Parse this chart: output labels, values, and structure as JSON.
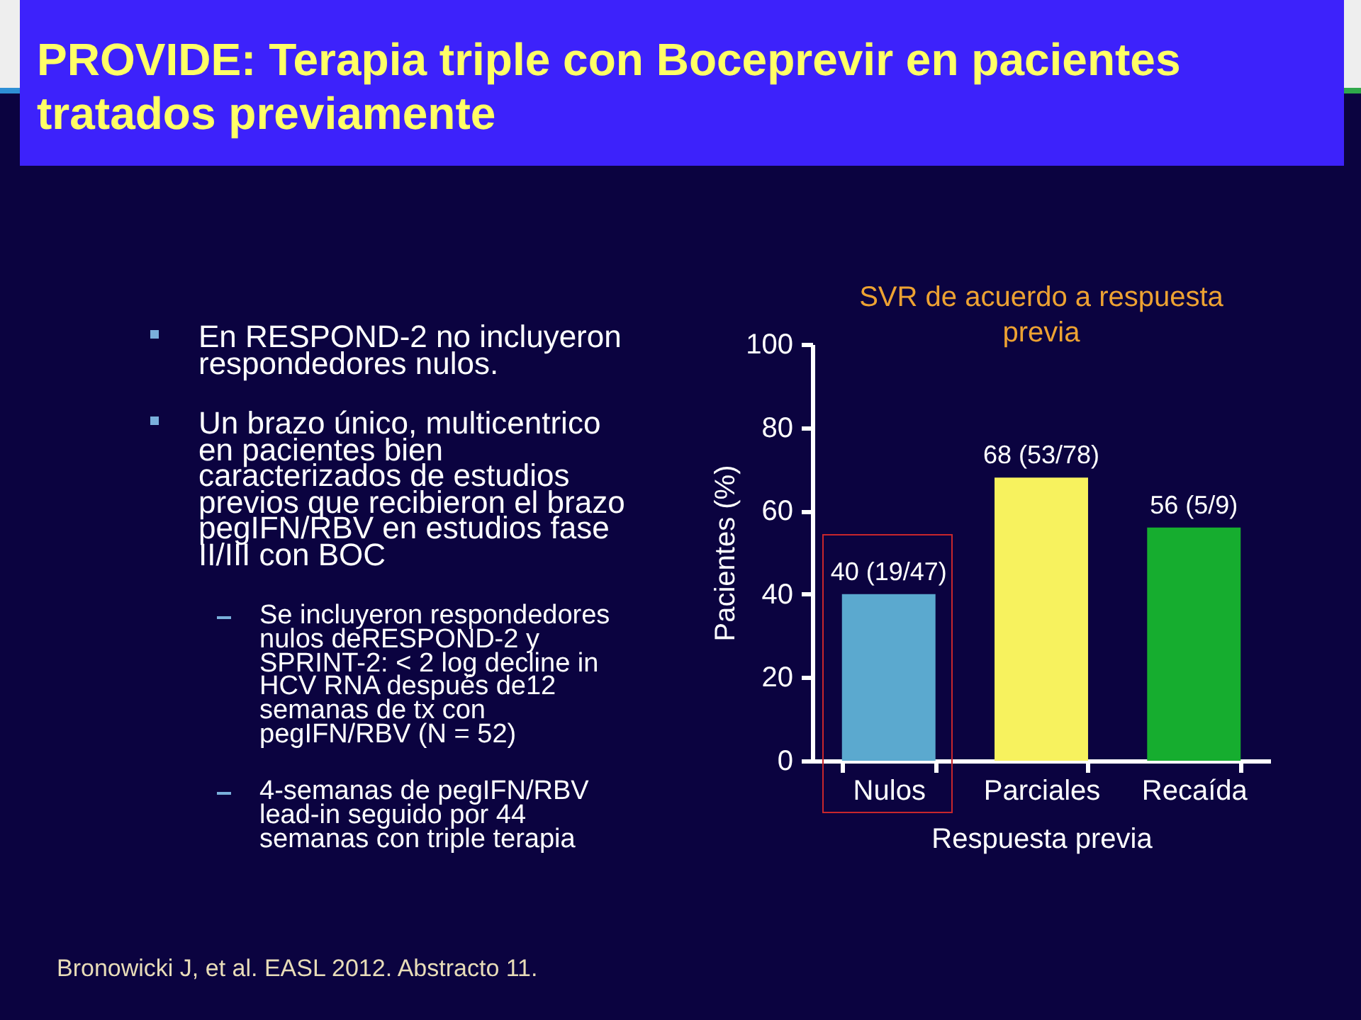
{
  "chart_data": {
    "type": "bar",
    "title": "PROVIDE: Terapia triple con Boceprevir en pacientes tratados previamente",
    "subtitle": "SVR de acuerdo a respuesta previa",
    "xlabel": "Respuesta previa",
    "ylabel": "Pacientes (%)",
    "categories": [
      "Nulos",
      "Parciales",
      "Recaída"
    ],
    "values": [
      40,
      68,
      56
    ],
    "colors": [
      "#5ba9cf",
      "#f7f25e",
      "#16ad2f"
    ],
    "value_labels": [
      "40 (19/47)",
      "68 (53/78)",
      "56 (5/9)"
    ],
    "ylim": [
      0,
      100
    ],
    "yticks": [
      0,
      20,
      40,
      60,
      80,
      100
    ],
    "annotations": [
      "En RESPOND-2 no incluyeron respondedores nulos.",
      "Un brazo único, multicentrico en pacientes bien caracterizados de estudios previos que recibieron el brazo pegIFN/RBV en estudios fase II/III con BOC",
      "Se incluyeron respondedores nulos deRESPOND-2 y SPRINT-2: < 2 log decline in HCV RNA después de12 semanas de tx con pegIFN/RBV (N = 52)",
      "4-semanas de pegIFN/RBV lead-in seguido por 44 semanas con triple terapia",
      "Bronowicki J, et al. EASL 2012. Abstracto 11."
    ]
  }
}
